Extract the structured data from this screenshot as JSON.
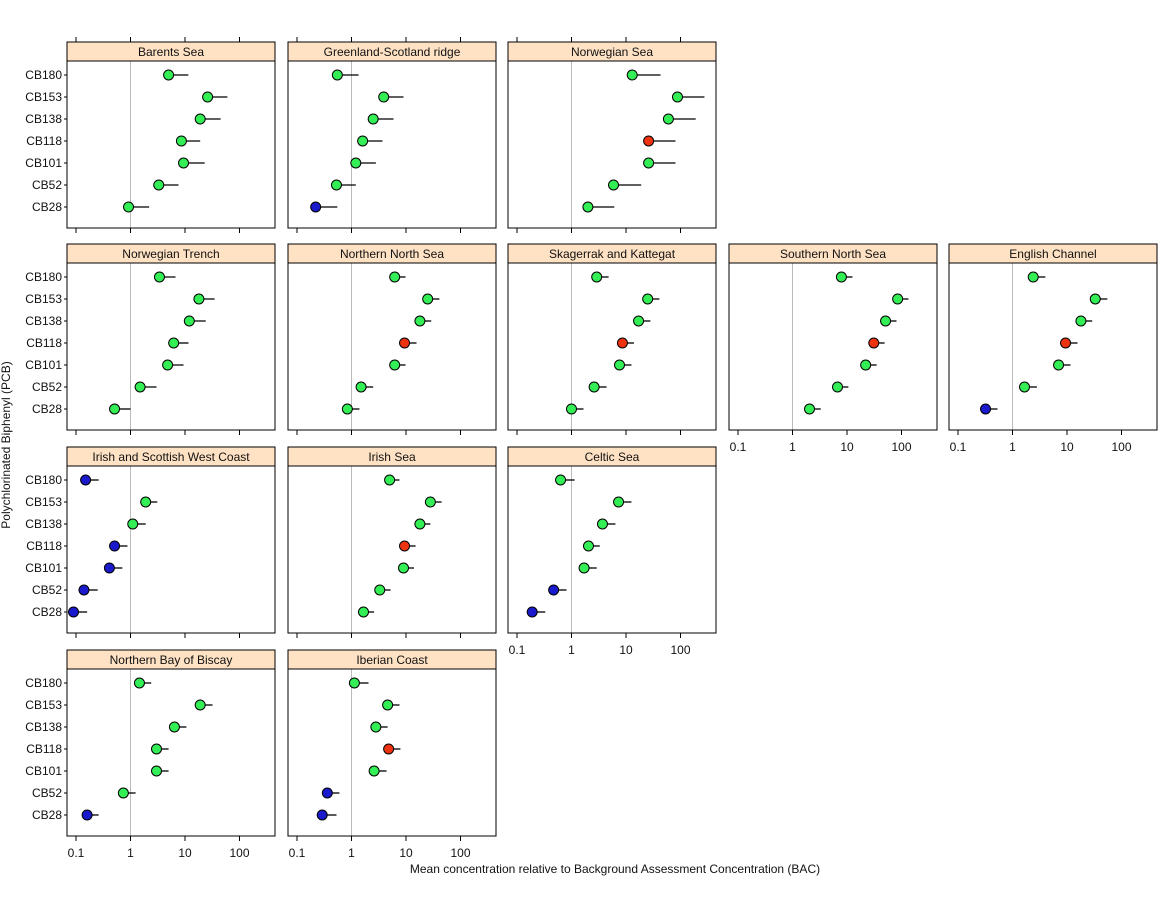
{
  "chart_data": {
    "type": "dot",
    "xlabel": "Mean concentration relative to Background Assessment Concentration (BAC)",
    "ylabel": "Polychlorinated Biphenyl (PCB)",
    "x_scale": "log",
    "xlim": [
      0.07,
      450
    ],
    "x_ticks": [
      "0.1",
      "1",
      "10",
      "100"
    ],
    "x_tick_values": [
      0.1,
      1,
      10,
      100
    ],
    "reference_line": 1,
    "categories": [
      "CB180",
      "CB153",
      "CB138",
      "CB118",
      "CB101",
      "CB52",
      "CB28"
    ],
    "status_colors": {
      "below_bac": "#1a1acc",
      "above_bac": "#33ee55",
      "above_eac": "#ee3311"
    },
    "panels": [
      {
        "name": "Barents Sea",
        "mean": [
          5.0,
          26,
          19,
          8.6,
          9.4,
          3.3,
          0.92
        ],
        "upper": [
          11.5,
          60,
          45,
          19,
          23,
          7.6,
          2.2
        ],
        "status": [
          "above_bac",
          "above_bac",
          "above_bac",
          "above_bac",
          "above_bac",
          "above_bac",
          "above_bac"
        ]
      },
      {
        "name": "Greenland-Scotland ridge",
        "mean": [
          0.55,
          3.9,
          2.5,
          1.6,
          1.2,
          0.53,
          0.22
        ],
        "upper": [
          1.35,
          9,
          5.9,
          3.7,
          2.8,
          1.2,
          0.55
        ],
        "status": [
          "above_bac",
          "above_bac",
          "above_bac",
          "above_bac",
          "above_bac",
          "above_bac",
          "below_bac"
        ]
      },
      {
        "name": "Norwegian Sea",
        "mean": [
          13,
          88,
          60,
          26,
          26,
          5.9,
          2.0
        ],
        "upper": [
          43,
          275,
          190,
          81,
          81,
          19,
          6.1
        ],
        "status": [
          "above_bac",
          "above_bac",
          "above_bac",
          "above_eac",
          "above_bac",
          "above_bac",
          "above_bac"
        ]
      },
      {
        "name": "Norwegian Trench",
        "mean": [
          3.4,
          18,
          12,
          6.2,
          4.8,
          1.5,
          0.51
        ],
        "upper": [
          6.7,
          35,
          24,
          11.6,
          9.4,
          3.0,
          1.0
        ],
        "status": [
          "above_bac",
          "above_bac",
          "above_bac",
          "above_bac",
          "above_bac",
          "above_bac",
          "above_bac"
        ]
      },
      {
        "name": "Northern North Sea",
        "mean": [
          6.2,
          25,
          18,
          9.4,
          6.2,
          1.5,
          0.84
        ],
        "upper": [
          9.8,
          41,
          29,
          15.6,
          9.8,
          2.5,
          1.4
        ],
        "status": [
          "above_bac",
          "above_bac",
          "above_bac",
          "above_eac",
          "above_bac",
          "above_bac",
          "above_bac"
        ]
      },
      {
        "name": "Skagerrak and Kattegat",
        "mean": [
          2.9,
          25,
          17,
          8.6,
          7.6,
          2.6,
          1.0
        ],
        "upper": [
          4.8,
          41,
          28,
          14,
          12.6,
          4.4,
          1.66
        ],
        "status": [
          "above_bac",
          "above_bac",
          "above_bac",
          "above_eac",
          "above_bac",
          "above_bac",
          "above_bac"
        ]
      },
      {
        "name": "Southern North Sea",
        "mean": [
          7.9,
          85,
          51,
          31,
          22,
          6.7,
          2.05
        ],
        "upper": [
          12.6,
          134,
          81,
          49,
          35,
          10.6,
          3.3
        ],
        "status": [
          "above_bac",
          "above_bac",
          "above_bac",
          "above_eac",
          "above_bac",
          "above_bac",
          "above_bac"
        ]
      },
      {
        "name": "English Channel",
        "mean": [
          2.4,
          33,
          18,
          9.4,
          7.0,
          1.66,
          0.32
        ],
        "upper": [
          4.0,
          55,
          29,
          15.6,
          11.6,
          2.8,
          0.53
        ],
        "status": [
          "above_bac",
          "above_bac",
          "above_bac",
          "above_eac",
          "above_bac",
          "above_bac",
          "below_bac"
        ]
      },
      {
        "name": "Irish and Scottish West Coast",
        "mean": [
          0.15,
          1.9,
          1.1,
          0.51,
          0.41,
          0.14,
          0.09
        ],
        "upper": [
          0.26,
          3.1,
          1.9,
          0.88,
          0.71,
          0.25,
          0.16
        ],
        "status": [
          "below_bac",
          "above_bac",
          "above_bac",
          "below_bac",
          "below_bac",
          "below_bac",
          "below_bac"
        ]
      },
      {
        "name": "Irish Sea",
        "mean": [
          5.0,
          28,
          18,
          9.4,
          9.0,
          3.3,
          1.66
        ],
        "upper": [
          7.6,
          45,
          28,
          15,
          14,
          5.2,
          2.6
        ],
        "status": [
          "above_bac",
          "above_bac",
          "above_bac",
          "above_eac",
          "above_bac",
          "above_bac",
          "above_bac"
        ]
      },
      {
        "name": "Celtic Sea",
        "mean": [
          0.63,
          7.3,
          3.7,
          2.05,
          1.7,
          0.47,
          0.19
        ],
        "upper": [
          1.14,
          12.6,
          6.4,
          3.3,
          2.9,
          0.81,
          0.33
        ],
        "status": [
          "above_bac",
          "above_bac",
          "above_bac",
          "above_bac",
          "above_bac",
          "below_bac",
          "below_bac"
        ]
      },
      {
        "name": "Northern Bay of Biscay",
        "mean": [
          1.46,
          19,
          6.4,
          3.0,
          3.0,
          0.74,
          0.16
        ],
        "upper": [
          2.4,
          32,
          10.6,
          5.0,
          5.0,
          1.24,
          0.26
        ],
        "status": [
          "above_bac",
          "above_bac",
          "above_bac",
          "above_bac",
          "above_bac",
          "above_bac",
          "below_bac"
        ]
      },
      {
        "name": "Iberian Coast",
        "mean": [
          1.13,
          4.6,
          2.8,
          4.8,
          2.6,
          0.36,
          0.29
        ],
        "upper": [
          2.05,
          7.6,
          4.6,
          7.9,
          4.4,
          0.6,
          0.53
        ],
        "status": [
          "above_bac",
          "above_bac",
          "above_bac",
          "above_eac",
          "above_bac",
          "below_bac",
          "below_bac"
        ]
      }
    ]
  }
}
